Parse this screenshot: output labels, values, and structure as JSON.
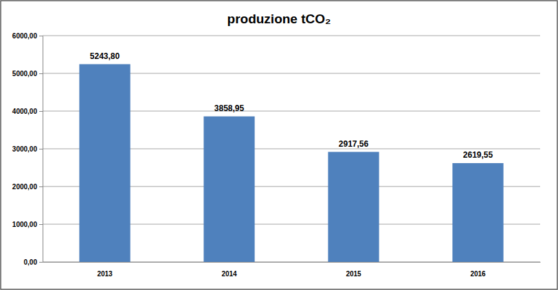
{
  "chart_data": {
    "type": "bar",
    "title": "produzione tCO₂",
    "categories": [
      "2013",
      "2014",
      "2015",
      "2016"
    ],
    "values": [
      5243.8,
      3858.95,
      2917.56,
      2619.55
    ],
    "value_labels": [
      "5243,80",
      "3858,95",
      "2917,56",
      "2619,55"
    ],
    "color": "#4f81bd",
    "ylim": [
      0,
      6000
    ],
    "yticks": [
      {
        "value": 0,
        "label": "0,00"
      },
      {
        "value": 1000,
        "label": "1000,00"
      },
      {
        "value": 2000,
        "label": "2000,00"
      },
      {
        "value": 3000,
        "label": "3000,00"
      },
      {
        "value": 4000,
        "label": "4000,00"
      },
      {
        "value": 5000,
        "label": "5000,00"
      },
      {
        "value": 6000,
        "label": "6000,00"
      }
    ],
    "grid": true,
    "data_labels": true
  }
}
